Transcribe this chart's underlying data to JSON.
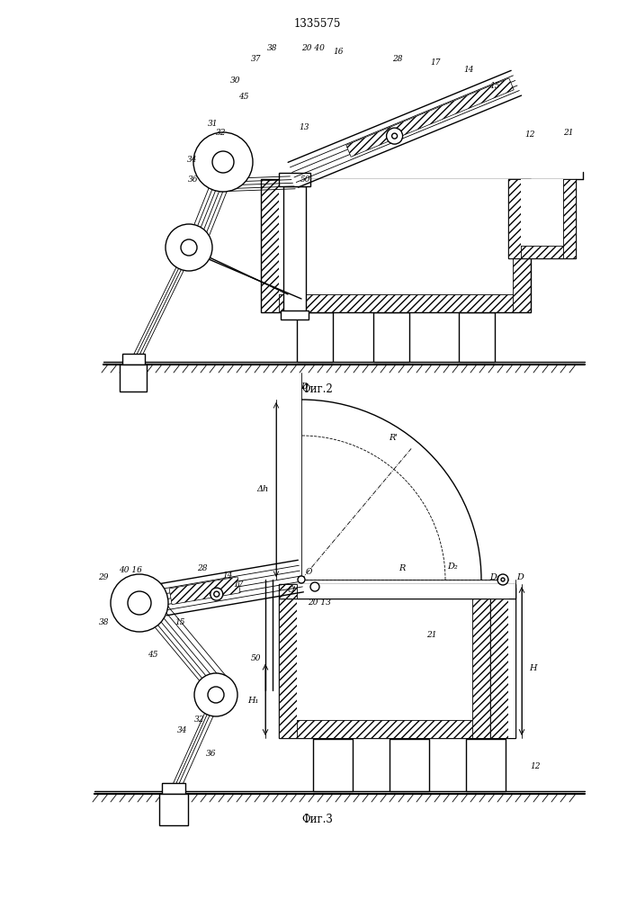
{
  "title": "1335575",
  "fig2_caption": "Фиг.2",
  "fig3_caption": "Фиг.3",
  "bg_color": "#ffffff",
  "line_color": "#000000"
}
